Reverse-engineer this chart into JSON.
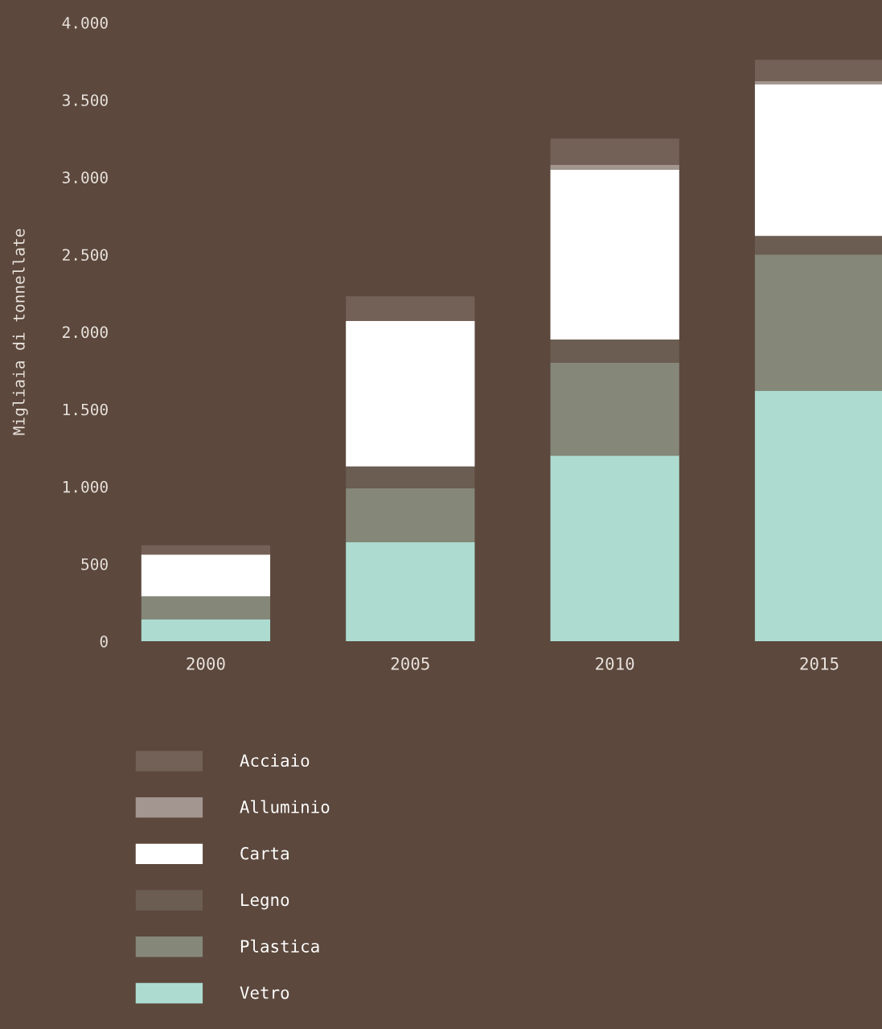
{
  "chart_data": {
    "type": "bar",
    "stacked": true,
    "ylabel": "Migliaia di tonnellate",
    "categories": [
      "2000",
      "2005",
      "2010",
      "2015"
    ],
    "series": [
      {
        "name": "Vetro",
        "color": "#addbd0",
        "values": [
          140,
          640,
          1200,
          1620
        ]
      },
      {
        "name": "Plastica",
        "color": "#858779",
        "values": [
          150,
          350,
          600,
          880
        ]
      },
      {
        "name": "Legno",
        "color": "#6b5d52",
        "values": [
          0,
          140,
          150,
          120
        ]
      },
      {
        "name": "Carta",
        "color": "#ffffff",
        "values": [
          270,
          940,
          1100,
          980
        ]
      },
      {
        "name": "Alluminio",
        "color": "#a39690",
        "values": [
          0,
          0,
          30,
          20
        ]
      },
      {
        "name": "Acciaio",
        "color": "#736056",
        "values": [
          60,
          160,
          170,
          140
        ]
      }
    ],
    "ylim": [
      0,
      4000
    ],
    "yticks": [
      0,
      {
        "value": 500,
        "label": "500"
      },
      {
        "value": 1000,
        "label": "1.000"
      },
      {
        "value": 1500,
        "label": "1.500"
      },
      {
        "value": 2000,
        "label": "2.000"
      },
      {
        "value": 2500,
        "label": "2.500"
      },
      {
        "value": 3000,
        "label": "3.000"
      },
      {
        "value": 3500,
        "label": "3.500"
      },
      {
        "value": 4000,
        "label": "4.000"
      }
    ],
    "legend": "bottom",
    "grid": false
  }
}
